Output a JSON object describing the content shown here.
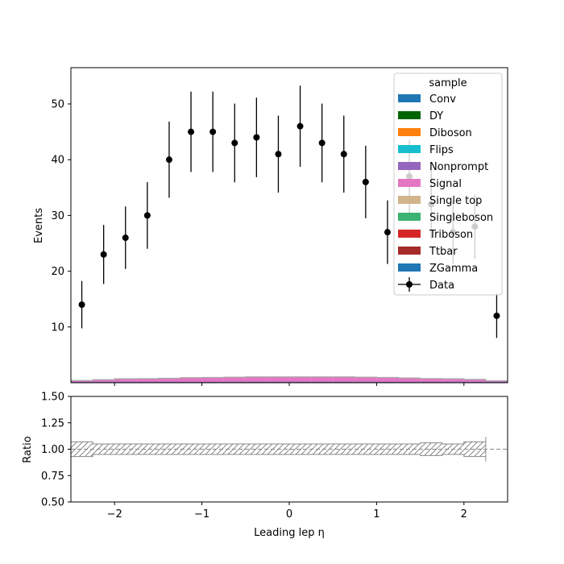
{
  "chart_data": [
    {
      "type": "bar",
      "panel": "main",
      "ylabel": "Events",
      "xlim": [
        -2.5,
        2.5
      ],
      "ylim": [
        0,
        56.5
      ],
      "yticks": [
        10,
        20,
        30,
        40,
        50
      ],
      "bin_edges": [
        -2.5,
        -2.25,
        -2.0,
        -1.75,
        -1.5,
        -1.25,
        -1.0,
        -0.75,
        -0.5,
        -0.25,
        0.0,
        0.25,
        0.5,
        0.75,
        1.0,
        1.25,
        1.5,
        1.75,
        2.0,
        2.25,
        2.5
      ],
      "stack_total": [
        0.4,
        0.55,
        0.7,
        0.72,
        0.8,
        0.9,
        0.95,
        1.0,
        1.05,
        1.05,
        1.05,
        1.05,
        1.05,
        1.0,
        0.95,
        0.85,
        0.75,
        0.7,
        0.6,
        0.35
      ],
      "legend_title": "sample",
      "legend_position": "top-right",
      "series": [
        {
          "name": "Conv",
          "color": "#1f77b4"
        },
        {
          "name": "DY",
          "color": "#006400"
        },
        {
          "name": "Diboson",
          "color": "#ff7f0e"
        },
        {
          "name": "Flips",
          "color": "#17becf"
        },
        {
          "name": "Nonprompt",
          "color": "#9467bd"
        },
        {
          "name": "Signal",
          "color": "#e377c2"
        },
        {
          "name": "Single top",
          "color": "#d2b48c"
        },
        {
          "name": "Singleboson",
          "color": "#3cb371"
        },
        {
          "name": "Triboson",
          "color": "#d62728"
        },
        {
          "name": "Ttbar",
          "color": "#a52a2a"
        },
        {
          "name": "ZGamma",
          "color": "#1f77b4"
        }
      ],
      "data": {
        "name": "Data",
        "x": [
          -2.375,
          -2.125,
          -1.875,
          -1.625,
          -1.375,
          -1.125,
          -0.875,
          -0.625,
          -0.375,
          -0.125,
          0.125,
          0.375,
          0.625,
          0.875,
          1.125,
          1.375,
          1.625,
          1.875,
          2.125,
          2.375
        ],
        "y": [
          14,
          23,
          26,
          30,
          40,
          45,
          45,
          43,
          44,
          41,
          46,
          43,
          41,
          36,
          27,
          37,
          32,
          27,
          28,
          12
        ]
      }
    },
    {
      "type": "area",
      "panel": "ratio",
      "ylabel": "Ratio",
      "xlabel": "Leading lep η",
      "xlim": [
        -2.5,
        2.5
      ],
      "ylim": [
        0.5,
        1.5
      ],
      "yticks": [
        "0.50",
        "0.75",
        "1.00",
        "1.25",
        "1.50"
      ],
      "xticks": [
        "−2",
        "−1",
        "0",
        "1",
        "2"
      ],
      "reference_line": 1.0,
      "uncertainty_band": [
        0.07,
        0.05,
        0.05,
        0.05,
        0.05,
        0.05,
        0.05,
        0.05,
        0.05,
        0.05,
        0.05,
        0.05,
        0.05,
        0.05,
        0.05,
        0.05,
        0.06,
        0.05,
        0.07,
        0
      ]
    }
  ]
}
